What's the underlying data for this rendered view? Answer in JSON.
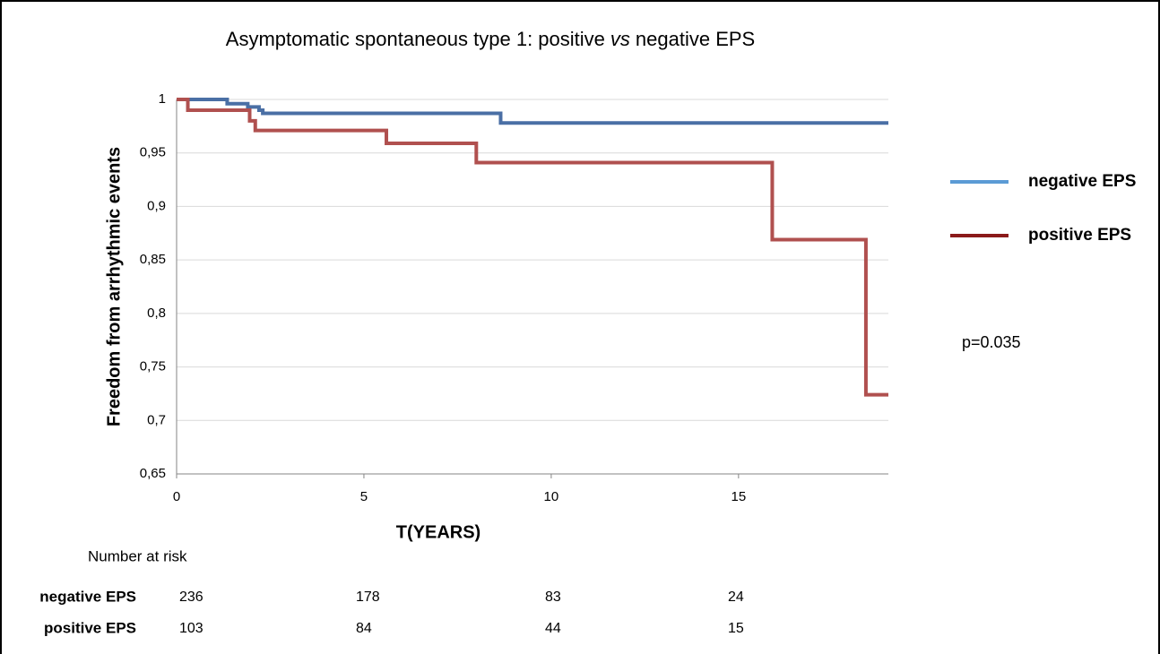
{
  "chart_data": {
    "type": "step",
    "title": [
      "Asymptomatic spontaneous type 1: positive",
      "vs",
      "negative EPS"
    ],
    "x_label": "T(YEARS)",
    "y_label": "Freedom from arrhythmic events",
    "xlim": [
      0,
      19
    ],
    "ylim": [
      0.65,
      1
    ],
    "xticks": [
      0,
      5,
      10,
      15
    ],
    "yticks": [
      {
        "value": 0.65,
        "label": "0,65"
      },
      {
        "value": 0.7,
        "label": "0,7"
      },
      {
        "value": 0.75,
        "label": "0,75"
      },
      {
        "value": 0.8,
        "label": "0,8"
      },
      {
        "value": 0.85,
        "label": "0,85"
      },
      {
        "value": 0.9,
        "label": "0,9"
      },
      {
        "value": 0.95,
        "label": "0,95"
      },
      1
    ],
    "grid": true,
    "legend_position": "right",
    "series": [
      {
        "name": "negative EPS",
        "color": "#4a6fa5",
        "legend_color": "#5b9bd5",
        "x": [
          0,
          1.35,
          1.9,
          2.2,
          2.3,
          8.65,
          19
        ],
        "values": [
          1,
          0.996,
          0.993,
          0.99,
          0.987,
          0.978,
          0.978
        ]
      },
      {
        "name": "positive EPS",
        "color": "#b0504f",
        "legend_color": "#8b1a1a",
        "x": [
          0,
          0.3,
          1.95,
          2.1,
          5.6,
          8,
          15.9,
          18.4,
          19
        ],
        "values": [
          1,
          0.99,
          0.98,
          0.971,
          0.959,
          0.941,
          0.869,
          0.724,
          0.724
        ]
      }
    ],
    "annotation": "p=0.035",
    "risk_table": {
      "title": "Number at risk",
      "rows": [
        {
          "name": "negative EPS",
          "values": [
            236,
            178,
            83,
            24
          ]
        },
        {
          "name": "positive EPS",
          "values": [
            103,
            84,
            44,
            15
          ]
        }
      ]
    }
  }
}
